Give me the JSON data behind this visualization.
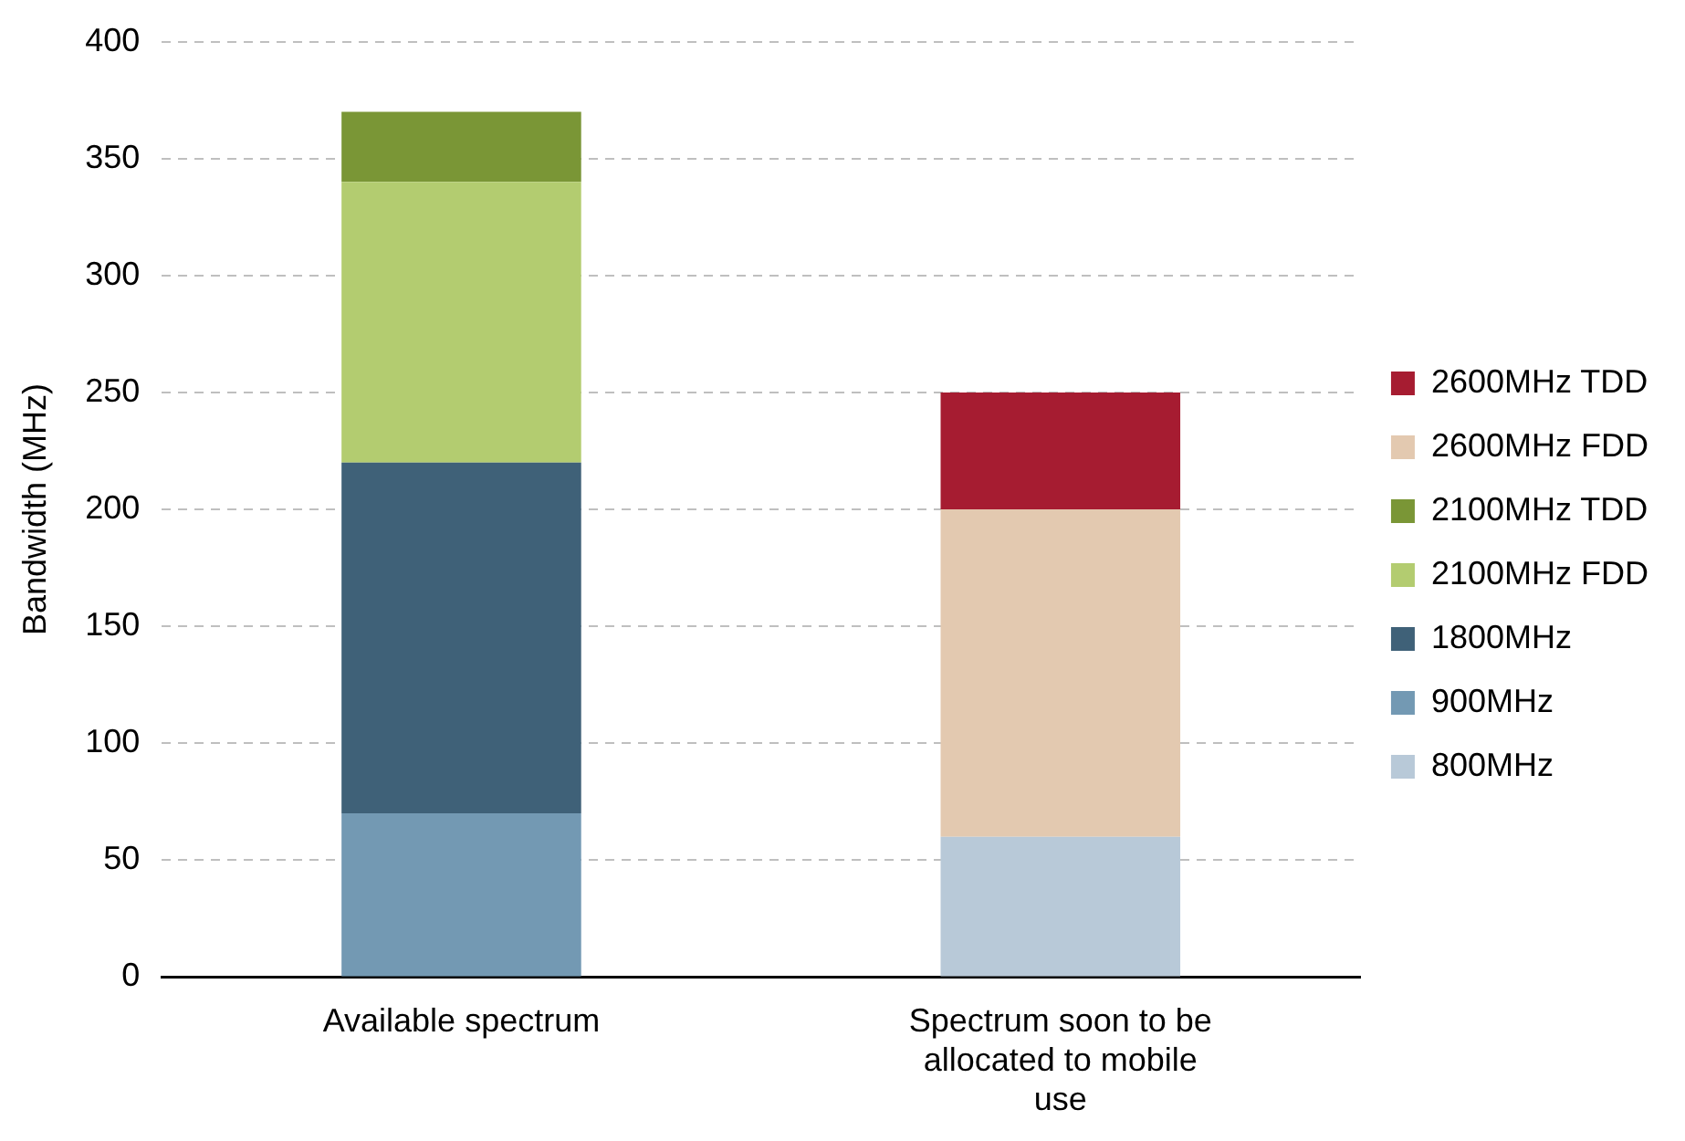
{
  "chart_data": {
    "type": "bar",
    "stacked": true,
    "ylabel": "Bandwidth (MHz)",
    "categories": [
      "Available spectrum",
      "Spectrum soon to be allocated to mobile use"
    ],
    "series": [
      {
        "name": "800MHz",
        "color": "#b8c9d8",
        "values": [
          null,
          60
        ]
      },
      {
        "name": "900MHz",
        "color": "#7399b3",
        "values": [
          70,
          null
        ]
      },
      {
        "name": "1800MHz",
        "color": "#3f6178",
        "values": [
          150,
          null
        ]
      },
      {
        "name": "2100MHz FDD",
        "color": "#b3cc70",
        "values": [
          120,
          null
        ]
      },
      {
        "name": "2100MHz TDD",
        "color": "#7a9636",
        "values": [
          30,
          null
        ]
      },
      {
        "name": "2600MHz FDD",
        "color": "#e3c9b0",
        "values": [
          null,
          140
        ]
      },
      {
        "name": "2600MHz TDD",
        "color": "#a61c31",
        "values": [
          null,
          50
        ]
      }
    ],
    "ylim": [
      0,
      400
    ],
    "yticks": [
      0,
      50,
      100,
      150,
      200,
      250,
      300,
      350,
      400
    ],
    "grid": "y",
    "legend": "right"
  }
}
